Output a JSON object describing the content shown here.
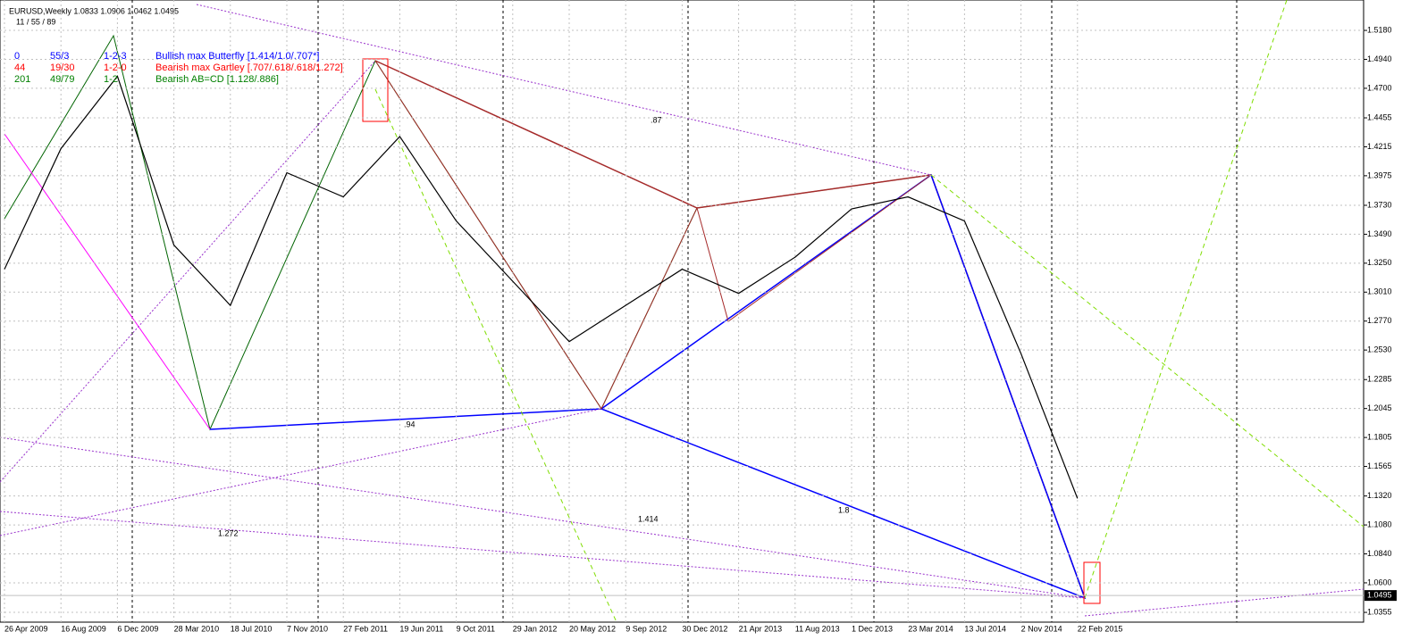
{
  "chart_data": {
    "type": "line",
    "title": "EURUSD,Weekly  1.0833 1.0906 1.0462 1.0495",
    "subtitle": "11 / 55 / 89",
    "legend_rows": [
      {
        "id": "0",
        "ratio": "55/3",
        "points": "1-2-3",
        "name": "Bullish max Butterfly [1.414/1.0/.707*]",
        "color": "#0000ff"
      },
      {
        "id": "44",
        "ratio": "19/30",
        "points": "1-2-0",
        "name": "Bearish max Gartley [.707/.618/.618/1.272]",
        "color": "#ff0000"
      },
      {
        "id": "201",
        "ratio": "49/79",
        "points": "1-2",
        "name": "Bearish AB=CD [1.128/.886]",
        "color": "#008000"
      }
    ],
    "annotations": [
      "1.272",
      "1.414",
      ".94",
      ".87",
      "1.8"
    ],
    "categories": [
      "26 Apr 2009",
      "16 Aug 2009",
      "6 Dec 2009",
      "28 Mar 2010",
      "18 Jul 2010",
      "7 Nov 2010",
      "27 Feb 2011",
      "19 Jun 2011",
      "9 Oct 2011",
      "29 Jan 2012",
      "20 May 2012",
      "9 Sep 2012",
      "30 Dec 2012",
      "21 Apr 2013",
      "11 Aug 2013",
      "1 Dec 2013",
      "23 Mar 2014",
      "13 Jul 2014",
      "2 Nov 2014",
      "22 Feb 2015"
    ],
    "series": [
      {
        "name": "EURUSD",
        "color": "#000000",
        "values": [
          1.32,
          1.42,
          1.48,
          1.34,
          1.29,
          1.4,
          1.38,
          1.43,
          1.36,
          1.31,
          1.26,
          1.29,
          1.32,
          1.3,
          1.33,
          1.37,
          1.38,
          1.36,
          1.25,
          1.13
        ]
      }
    ],
    "current_price": {
      "value": 1.0495,
      "label": "1.0495"
    },
    "ylim": [
      1.0274,
      1.5432
    ],
    "yticks": [
      1.0355,
      {
        "value": 1.06,
        "label": "1.0600"
      },
      {
        "value": 1.084,
        "label": "1.0840"
      },
      {
        "value": 1.108,
        "label": "1.1080"
      },
      {
        "value": 1.132,
        "label": "1.1320"
      },
      1.1565,
      1.1805,
      1.2045,
      1.2285,
      {
        "value": 1.253,
        "label": "1.2530"
      },
      {
        "value": 1.277,
        "label": "1.2770"
      },
      {
        "value": 1.301,
        "label": "1.3010"
      },
      {
        "value": 1.325,
        "label": "1.3250"
      },
      {
        "value": 1.349,
        "label": "1.3490"
      },
      {
        "value": 1.373,
        "label": "1.3730"
      },
      1.3975,
      1.4215,
      1.4455,
      {
        "value": 1.47,
        "label": "1.4700"
      },
      {
        "value": 1.494,
        "label": "1.4940"
      },
      {
        "value": 1.518,
        "label": "1.5180"
      }
    ],
    "grid": true
  }
}
